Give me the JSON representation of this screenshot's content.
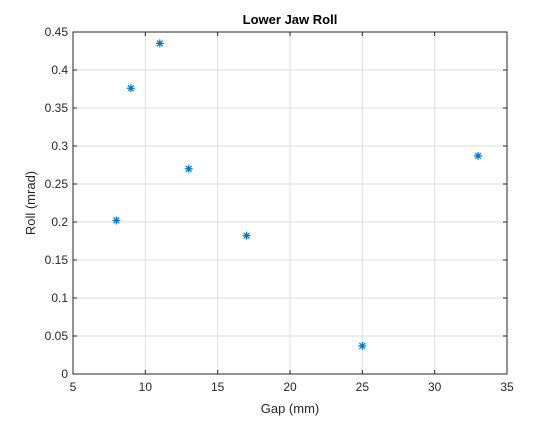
{
  "chart_data": {
    "type": "scatter",
    "title": "Lower Jaw Roll",
    "xlabel": "Gap (mm)",
    "ylabel": "Roll (mrad)",
    "xlim": [
      5,
      35
    ],
    "ylim": [
      0,
      0.45
    ],
    "xticks": [
      "5",
      "10",
      "15",
      "20",
      "25",
      "30",
      "35"
    ],
    "yticks": [
      "0",
      "0.05",
      "0.1",
      "0.15",
      "0.2",
      "0.25",
      "0.3",
      "0.35",
      "0.4",
      "0.45"
    ],
    "grid": true,
    "marker": "asterisk",
    "marker_color": "#0072bd",
    "series": [
      {
        "x": [
          8,
          9,
          11,
          13,
          17,
          25,
          33
        ],
        "y": [
          0.202,
          0.376,
          0.435,
          0.27,
          0.182,
          0.037,
          0.287
        ]
      }
    ]
  }
}
